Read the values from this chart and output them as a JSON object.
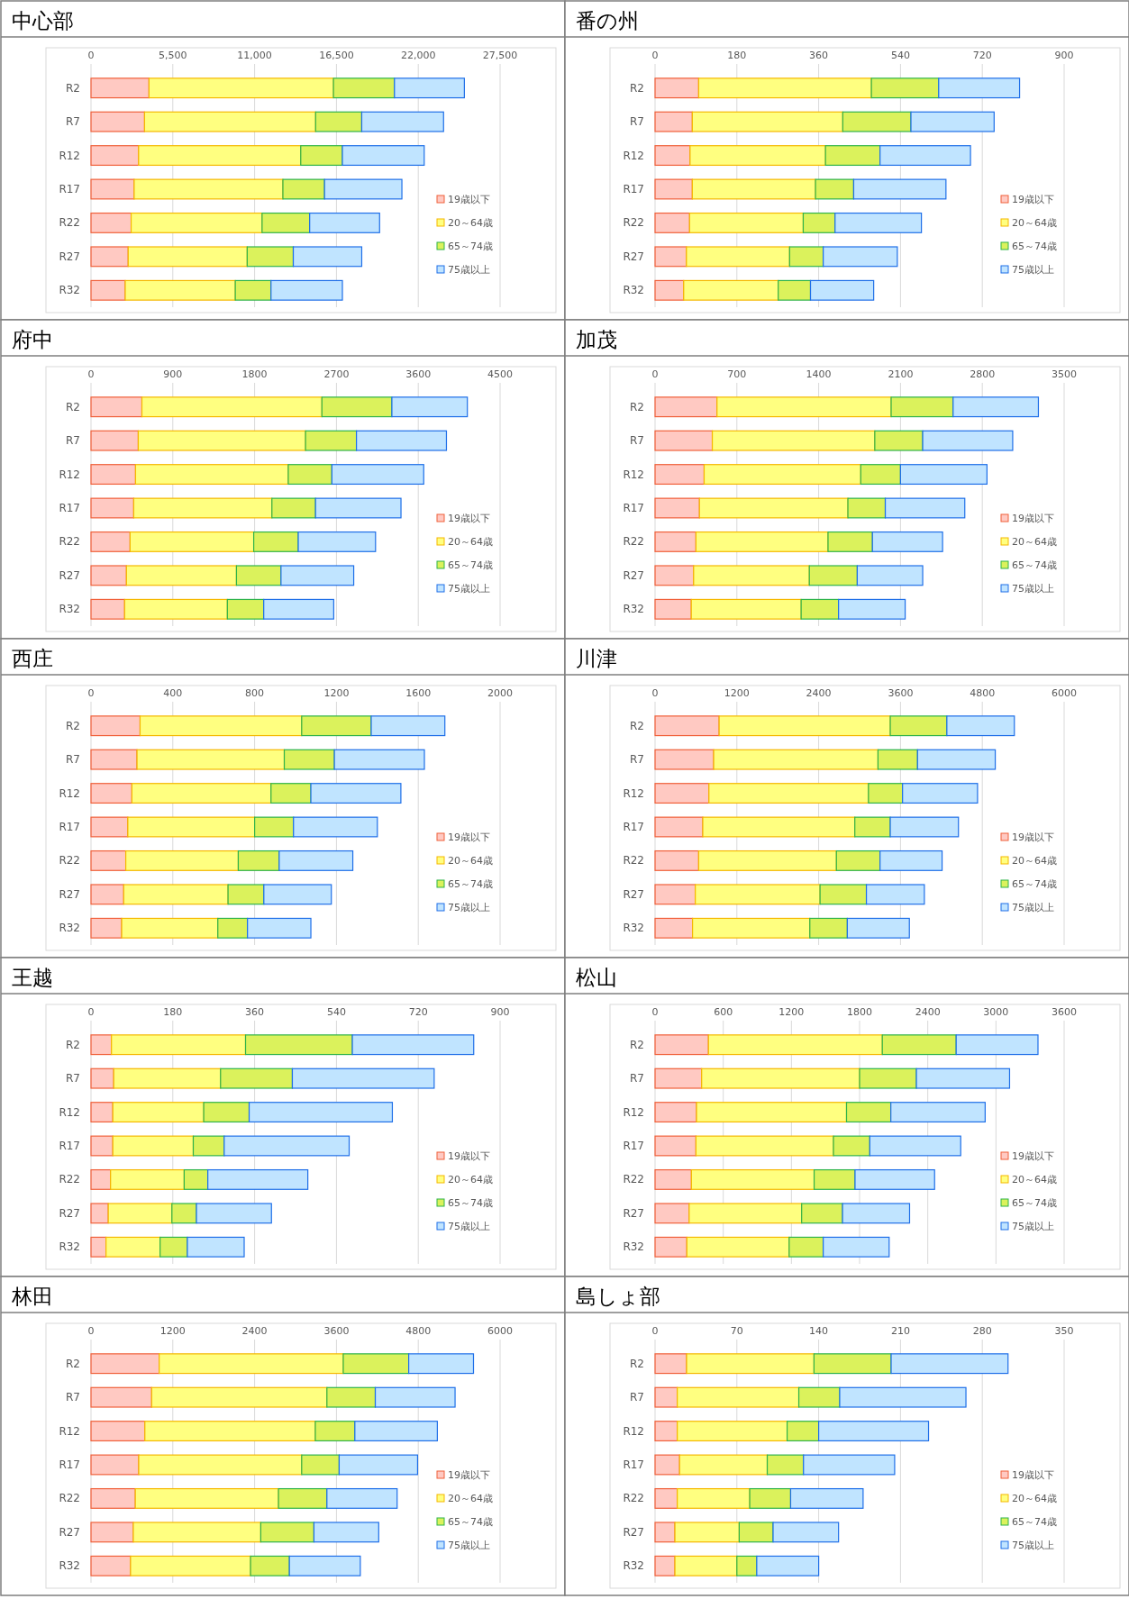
{
  "chart_data": [
    {
      "type": "bar",
      "title": "中心部",
      "orientation": "horizontal",
      "stacked": true,
      "categories": [
        "R2",
        "R7",
        "R12",
        "R17",
        "R22",
        "R27",
        "R32"
      ],
      "xlim": [
        0,
        27500
      ],
      "xticks": [
        0,
        {
          "value": 5500,
          "label": "5,500"
        },
        {
          "value": 11000,
          "label": "11,000"
        },
        {
          "value": 16500,
          "label": "16,500"
        },
        {
          "value": 22000,
          "label": "22,000"
        },
        {
          "value": 27500,
          "label": "27,500"
        }
      ],
      "grid": "x",
      "legend": "bottom right",
      "series": [
        {
          "name": "19歳以下",
          "color": "#ffc9c2",
          "values": [
            3900,
            3600,
            3200,
            2900,
            2700,
            2500,
            2300
          ]
        },
        {
          "name": "20～64歳",
          "color": "#ffff80",
          "values": [
            12400,
            11500,
            10900,
            10000,
            8800,
            8000,
            7400
          ]
        },
        {
          "name": "65～74歳",
          "color": "#dbf25c",
          "values": [
            4100,
            3100,
            2800,
            2800,
            3200,
            3100,
            2400
          ]
        },
        {
          "name": "75歳以上",
          "color": "#c0e4ff",
          "values": [
            4700,
            5500,
            5500,
            5200,
            4700,
            4600,
            4800
          ]
        }
      ]
    },
    {
      "type": "bar",
      "title": "番の州",
      "orientation": "horizontal",
      "stacked": true,
      "categories": [
        "R2",
        "R7",
        "R12",
        "R17",
        "R22",
        "R27",
        "R32"
      ],
      "xlim": [
        0,
        900
      ],
      "xticks": [
        0,
        180,
        360,
        540,
        720,
        900
      ],
      "grid": "x",
      "legend": "bottom right",
      "series": [
        {
          "name": "19歳以下",
          "color": "#ffc9c2",
          "values": [
            96,
            82,
            77,
            82,
            76,
            69,
            63
          ]
        },
        {
          "name": "20～64歳",
          "color": "#ffff80",
          "values": [
            380,
            331,
            298,
            271,
            250,
            227,
            208
          ]
        },
        {
          "name": "65～74歳",
          "color": "#dbf25c",
          "values": [
            148,
            150,
            120,
            84,
            70,
            74,
            71
          ]
        },
        {
          "name": "75歳以上",
          "color": "#c0e4ff",
          "values": [
            178,
            183,
            199,
            203,
            190,
            163,
            139
          ]
        }
      ]
    },
    {
      "type": "bar",
      "title": "府中",
      "orientation": "horizontal",
      "stacked": true,
      "categories": [
        "R2",
        "R7",
        "R12",
        "R17",
        "R22",
        "R27",
        "R32"
      ],
      "xlim": [
        0,
        4500
      ],
      "xticks": [
        0,
        900,
        1800,
        2700,
        3600,
        4500
      ],
      "grid": "x",
      "legend": "bottom right",
      "series": [
        {
          "name": "19歳以下",
          "color": "#ffc9c2",
          "values": [
            560,
            520,
            490,
            470,
            430,
            390,
            370
          ]
        },
        {
          "name": "20～64歳",
          "color": "#ffff80",
          "values": [
            1980,
            1840,
            1680,
            1520,
            1360,
            1210,
            1130
          ]
        },
        {
          "name": "65～74歳",
          "color": "#dbf25c",
          "values": [
            770,
            560,
            480,
            480,
            490,
            490,
            400
          ]
        },
        {
          "name": "75歳以上",
          "color": "#c0e4ff",
          "values": [
            830,
            990,
            1010,
            940,
            850,
            800,
            770
          ]
        }
      ]
    },
    {
      "type": "bar",
      "title": "加茂",
      "orientation": "horizontal",
      "stacked": true,
      "categories": [
        "R2",
        "R7",
        "R12",
        "R17",
        "R22",
        "R27",
        "R32"
      ],
      "xlim": [
        0,
        3500
      ],
      "xticks": [
        0,
        700,
        1400,
        2100,
        2800,
        3500
      ],
      "grid": "x",
      "legend": "bottom right",
      "series": [
        {
          "name": "19歳以下",
          "color": "#ffc9c2",
          "values": [
            530,
            490,
            420,
            380,
            350,
            330,
            310
          ]
        },
        {
          "name": "20～64歳",
          "color": "#ffff80",
          "values": [
            1490,
            1390,
            1340,
            1270,
            1130,
            990,
            940
          ]
        },
        {
          "name": "65～74歳",
          "color": "#dbf25c",
          "values": [
            530,
            410,
            340,
            320,
            380,
            410,
            320
          ]
        },
        {
          "name": "75歳以上",
          "color": "#c0e4ff",
          "values": [
            730,
            770,
            740,
            680,
            600,
            560,
            570
          ]
        }
      ]
    },
    {
      "type": "bar",
      "title": "西庄",
      "orientation": "horizontal",
      "stacked": true,
      "categories": [
        "R2",
        "R7",
        "R12",
        "R17",
        "R22",
        "R27",
        "R32"
      ],
      "xlim": [
        0,
        2000
      ],
      "xticks": [
        0,
        400,
        800,
        1200,
        1600,
        2000
      ],
      "grid": "x",
      "legend": "bottom right",
      "series": [
        {
          "name": "19歳以下",
          "color": "#ffc9c2",
          "values": [
            240,
            225,
            200,
            180,
            170,
            160,
            150
          ]
        },
        {
          "name": "20～64歳",
          "color": "#ffff80",
          "values": [
            790,
            720,
            680,
            620,
            550,
            510,
            470
          ]
        },
        {
          "name": "65～74歳",
          "color": "#dbf25c",
          "values": [
            340,
            245,
            195,
            190,
            200,
            175,
            145
          ]
        },
        {
          "name": "75歳以上",
          "color": "#c0e4ff",
          "values": [
            360,
            440,
            440,
            410,
            360,
            330,
            310
          ]
        }
      ]
    },
    {
      "type": "bar",
      "title": "川津",
      "orientation": "horizontal",
      "stacked": true,
      "categories": [
        "R2",
        "R7",
        "R12",
        "R17",
        "R22",
        "R27",
        "R32"
      ],
      "xlim": [
        0,
        6000
      ],
      "xticks": [
        0,
        1200,
        2400,
        3600,
        4800,
        6000
      ],
      "grid": "x",
      "legend": "bottom right",
      "series": [
        {
          "name": "19歳以下",
          "color": "#ffc9c2",
          "values": [
            940,
            860,
            790,
            700,
            640,
            590,
            550
          ]
        },
        {
          "name": "20～64歳",
          "color": "#ffff80",
          "values": [
            2510,
            2410,
            2340,
            2230,
            2020,
            1830,
            1720
          ]
        },
        {
          "name": "65～74歳",
          "color": "#dbf25c",
          "values": [
            830,
            580,
            500,
            520,
            640,
            680,
            550
          ]
        },
        {
          "name": "75歳以上",
          "color": "#c0e4ff",
          "values": [
            990,
            1140,
            1100,
            1000,
            910,
            850,
            910
          ]
        }
      ]
    },
    {
      "type": "bar",
      "title": "王越",
      "orientation": "horizontal",
      "stacked": true,
      "categories": [
        "R2",
        "R7",
        "R12",
        "R17",
        "R22",
        "R27",
        "R32"
      ],
      "xlim": [
        0,
        900
      ],
      "xticks": [
        0,
        180,
        360,
        540,
        720,
        900
      ],
      "grid": "x",
      "legend": "bottom right",
      "series": [
        {
          "name": "19歳以下",
          "color": "#ffc9c2",
          "values": [
            45,
            50,
            48,
            48,
            43,
            38,
            33
          ]
        },
        {
          "name": "20～64歳",
          "color": "#ffff80",
          "values": [
            295,
            235,
            200,
            177,
            162,
            140,
            119
          ]
        },
        {
          "name": "65～74歳",
          "color": "#dbf25c",
          "values": [
            235,
            158,
            100,
            68,
            52,
            54,
            60
          ]
        },
        {
          "name": "75歳以上",
          "color": "#c0e4ff",
          "values": [
            267,
            312,
            315,
            275,
            220,
            165,
            125
          ]
        }
      ]
    },
    {
      "type": "bar",
      "title": "松山",
      "orientation": "horizontal",
      "stacked": true,
      "categories": [
        "R2",
        "R7",
        "R12",
        "R17",
        "R22",
        "R27",
        "R32"
      ],
      "xlim": [
        0,
        3600
      ],
      "xticks": [
        0,
        600,
        1200,
        1800,
        2400,
        3000,
        3600
      ],
      "grid": "x",
      "legend": "bottom right",
      "series": [
        {
          "name": "19歳以下",
          "color": "#ffc9c2",
          "values": [
            470,
            410,
            365,
            360,
            320,
            300,
            280
          ]
        },
        {
          "name": "20～64歳",
          "color": "#ffff80",
          "values": [
            1530,
            1390,
            1320,
            1210,
            1080,
            990,
            900
          ]
        },
        {
          "name": "65～74歳",
          "color": "#dbf25c",
          "values": [
            650,
            500,
            390,
            320,
            360,
            360,
            300
          ]
        },
        {
          "name": "75歳以上",
          "color": "#c0e4ff",
          "values": [
            720,
            820,
            830,
            800,
            700,
            590,
            580
          ]
        }
      ]
    },
    {
      "type": "bar",
      "title": "林田",
      "orientation": "horizontal",
      "stacked": true,
      "categories": [
        "R2",
        "R7",
        "R12",
        "R17",
        "R22",
        "R27",
        "R32"
      ],
      "xlim": [
        0,
        6000
      ],
      "xticks": [
        0,
        1200,
        2400,
        3600,
        4800,
        6000
      ],
      "grid": "x",
      "legend": "bottom right",
      "series": [
        {
          "name": "19歳以下",
          "color": "#ffc9c2",
          "values": [
            1000,
            890,
            790,
            700,
            650,
            620,
            580
          ]
        },
        {
          "name": "20～64歳",
          "color": "#ffff80",
          "values": [
            2700,
            2570,
            2500,
            2390,
            2100,
            1870,
            1760
          ]
        },
        {
          "name": "65～74歳",
          "color": "#dbf25c",
          "values": [
            960,
            710,
            580,
            550,
            710,
            780,
            570
          ]
        },
        {
          "name": "75歳以上",
          "color": "#c0e4ff",
          "values": [
            950,
            1170,
            1210,
            1150,
            1030,
            950,
            1040
          ]
        }
      ]
    },
    {
      "type": "bar",
      "title": "島しょ部",
      "orientation": "horizontal",
      "stacked": true,
      "categories": [
        "R2",
        "R7",
        "R12",
        "R17",
        "R22",
        "R27",
        "R32"
      ],
      "xlim": [
        0,
        350
      ],
      "xticks": [
        0,
        70,
        140,
        210,
        280,
        350
      ],
      "grid": "x",
      "legend": "bottom right",
      "series": [
        {
          "name": "19歳以下",
          "color": "#ffc9c2",
          "values": [
            27,
            19,
            19,
            21,
            19,
            17,
            17
          ]
        },
        {
          "name": "20～64歳",
          "color": "#ffff80",
          "values": [
            109,
            104,
            94,
            75,
            62,
            55,
            53
          ]
        },
        {
          "name": "65～74歳",
          "color": "#dbf25c",
          "values": [
            66,
            35,
            27,
            31,
            35,
            29,
            17
          ]
        },
        {
          "name": "75歳以上",
          "color": "#c0e4ff",
          "values": [
            100,
            108,
            94,
            78,
            62,
            56,
            53
          ]
        }
      ]
    }
  ]
}
